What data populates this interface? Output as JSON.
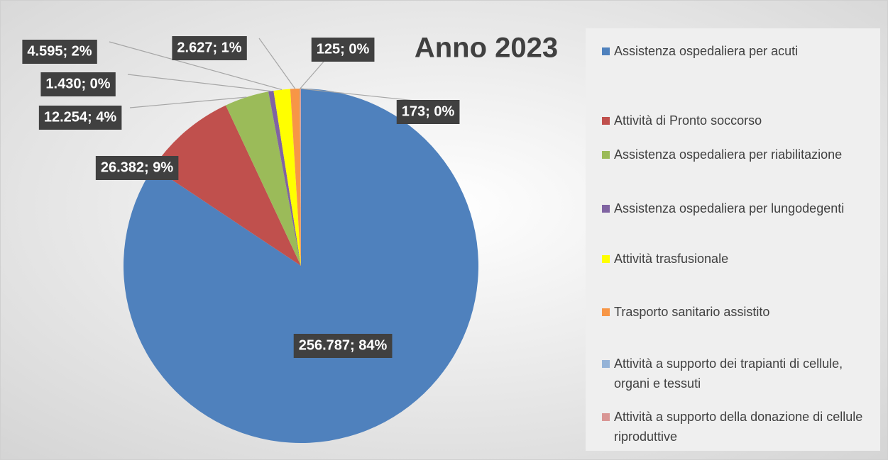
{
  "chart_data": {
    "type": "pie",
    "title": "Anno 2023",
    "categories": [
      "Assistenza ospedaliera per acuti",
      "Attività di Pronto soccorso",
      "Assistenza ospedaliera per riabilitazione",
      "Assistenza ospedaliera per lungodegenti",
      "Attività trasfusionale",
      "Trasporto sanitario assistito",
      "Attività a supporto dei trapianti di cellule, organi e tessuti",
      "Attività a supporto della donazione di cellule riproduttive"
    ],
    "values": [
      256787,
      26382,
      12254,
      1430,
      4595,
      2627,
      125,
      173
    ],
    "value_labels": [
      "256.787; 84%",
      "26.382; 9%",
      "12.254; 4%",
      "1.430; 0%",
      "4.595; 2%",
      "2.627; 1%",
      "125; 0%",
      "173; 0%"
    ],
    "colors": [
      "#4f81bd",
      "#c0504d",
      "#9bbb59",
      "#8064a2",
      "#ffff00",
      "#f79646",
      "#95b3d7",
      "#d99694"
    ],
    "legend": "right"
  }
}
